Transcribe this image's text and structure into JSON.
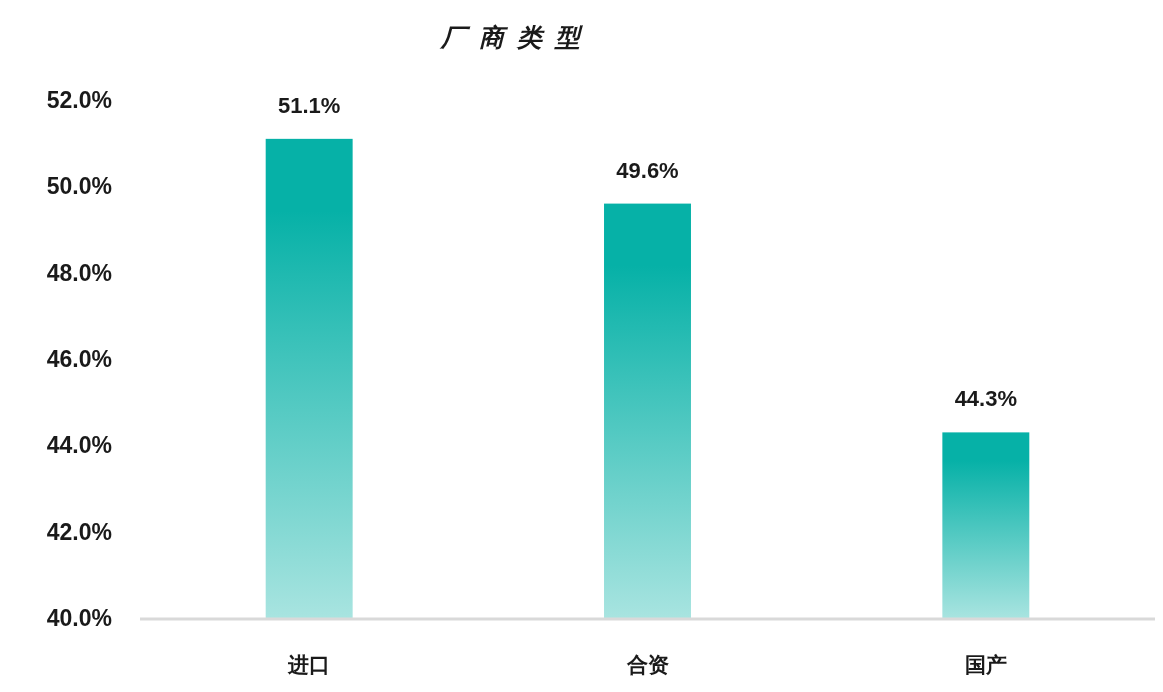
{
  "chart_data": {
    "type": "bar",
    "title": "厂 商 类 型",
    "categories": [
      "进口",
      "合资",
      "国产"
    ],
    "values": [
      51.1,
      49.6,
      44.3
    ],
    "color": "#06b1a7",
    "value_labels": [
      "51.1%",
      "49.6%",
      "44.3%"
    ],
    "ylim": [
      40,
      52
    ],
    "yticks": [
      {
        "value": 40,
        "label": "40.0%"
      },
      {
        "value": 42,
        "label": "42.0%"
      },
      {
        "value": 44,
        "label": "44.0%"
      },
      {
        "value": 46,
        "label": "46.0%"
      },
      {
        "value": 48,
        "label": "48.0%"
      },
      {
        "value": 50,
        "label": "50.0%"
      },
      {
        "value": 52,
        "label": "52.0%"
      }
    ]
  }
}
